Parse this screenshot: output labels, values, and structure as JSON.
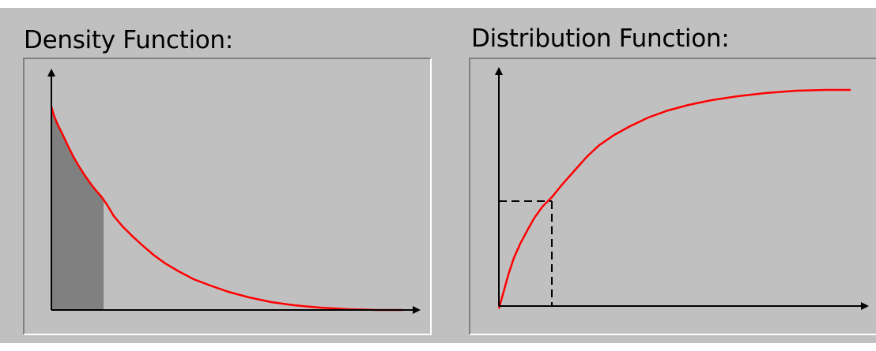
{
  "panels": {
    "density": {
      "title": "Density Function:",
      "curve_color": "#ff0000",
      "shaded_area_color": "#808080",
      "axis_color": "#000000"
    },
    "distribution": {
      "title": "Distribution Function:",
      "curve_color": "#ff0000",
      "guide_line_style": "dashed",
      "axis_color": "#000000"
    }
  },
  "colors": {
    "background": "#c0c0c0",
    "frame_shadow": "#808080",
    "frame_highlight": "#ffffff"
  }
}
